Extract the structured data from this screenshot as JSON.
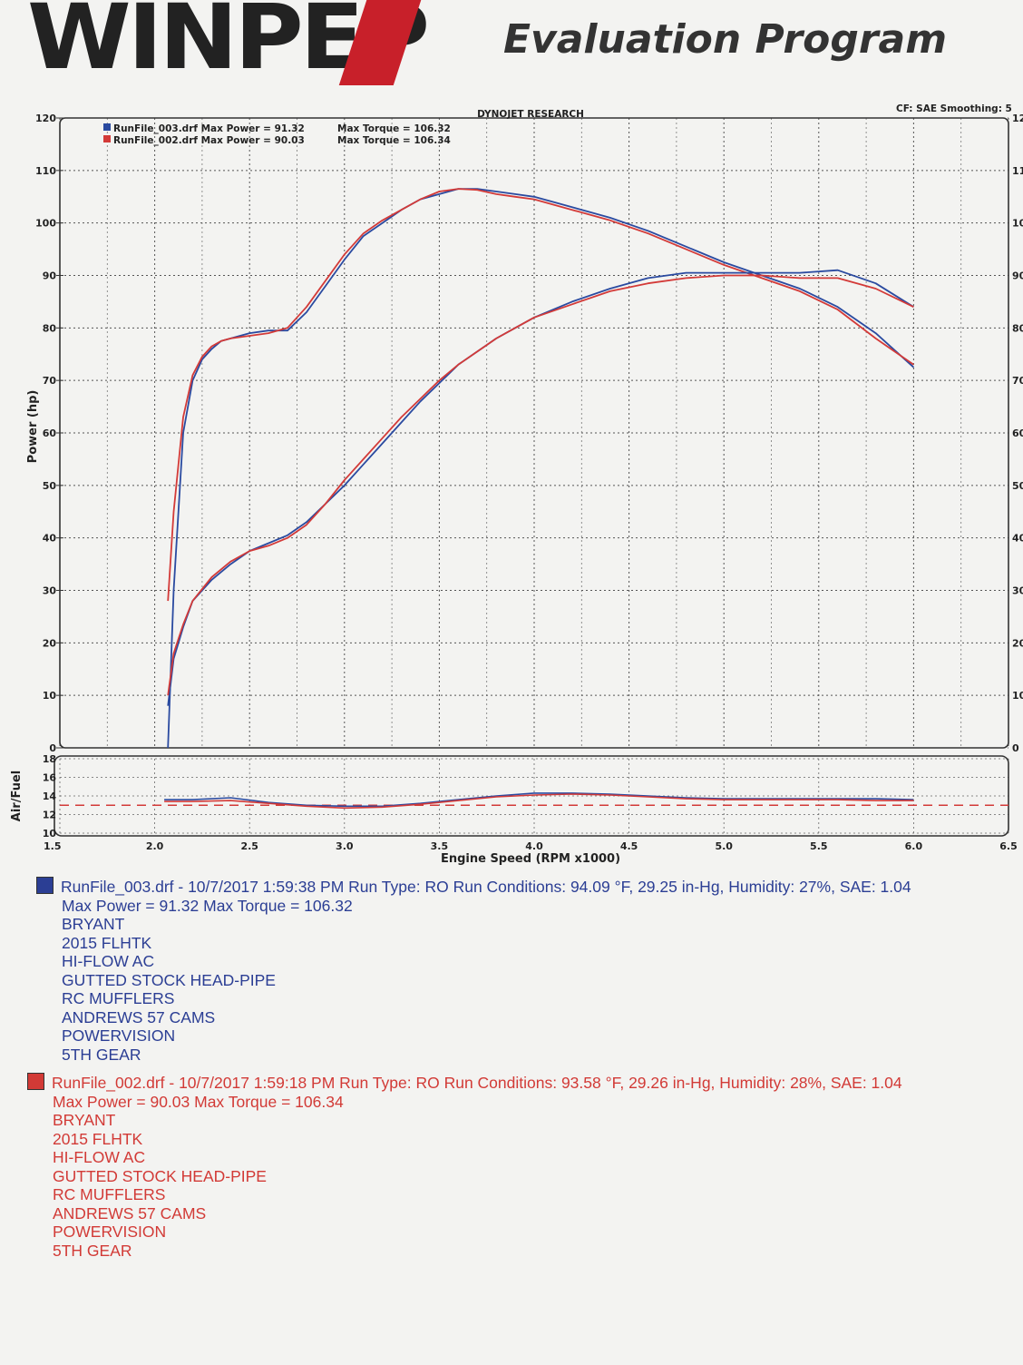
{
  "header": {
    "logo_text": "WINPEP",
    "program_name": "Evaluation Program"
  },
  "chart_data": [
    {
      "type": "line",
      "title": "DYNOJET RESEARCH",
      "note_right": "CF: SAE  Smoothing: 5",
      "xlabel": "Engine Speed (RPM x1000)",
      "ylabel": "Power (hp)",
      "xlim": [
        1.5,
        6.5
      ],
      "ylim": [
        0,
        120
      ],
      "x_ticks": [
        "1.5",
        "2.0",
        "2.5",
        "3.0",
        "3.5",
        "4.0",
        "4.5",
        "5.0",
        "5.5",
        "6.0",
        "6.5"
      ],
      "y_ticks": [
        "0",
        "10",
        "20",
        "30",
        "40",
        "50",
        "60",
        "70",
        "80",
        "90",
        "100",
        "110",
        "120"
      ],
      "grid": true,
      "legend": [
        {
          "label": "RunFile_003.drf Max Power = 91.32",
          "torque": "Max Torque = 106.32",
          "color": "#2a4aa0"
        },
        {
          "label": "RunFile_002.drf Max Power = 90.03",
          "torque": "Max Torque = 106.34",
          "color": "#d33a38"
        }
      ],
      "legend_position": "top-left",
      "series": [
        {
          "run": "RunFile_003.drf",
          "measure": "torque",
          "color": "#2a4aa0",
          "x": [
            2.07,
            2.1,
            2.15,
            2.2,
            2.25,
            2.3,
            2.35,
            2.4,
            2.5,
            2.6,
            2.7,
            2.8,
            2.9,
            3.0,
            3.1,
            3.2,
            3.3,
            3.4,
            3.5,
            3.6,
            3.7,
            3.8,
            3.9,
            4.0,
            4.2,
            4.4,
            4.6,
            4.8,
            5.0,
            5.2,
            5.4,
            5.6,
            5.8,
            6.0
          ],
          "y": [
            0,
            30,
            60,
            70,
            74,
            76,
            77.5,
            78,
            79,
            79.5,
            79.5,
            83,
            88,
            93,
            97.5,
            100,
            102.5,
            104.5,
            105.5,
            106.5,
            106.5,
            106,
            105.5,
            105,
            103,
            101,
            98.5,
            95.5,
            92.5,
            90,
            87.5,
            84,
            79,
            72.5
          ]
        },
        {
          "run": "RunFile_002.drf",
          "measure": "torque",
          "color": "#d33a38",
          "x": [
            2.07,
            2.1,
            2.15,
            2.2,
            2.25,
            2.3,
            2.35,
            2.4,
            2.5,
            2.6,
            2.7,
            2.8,
            2.9,
            3.0,
            3.1,
            3.2,
            3.3,
            3.4,
            3.5,
            3.6,
            3.7,
            3.8,
            3.9,
            4.0,
            4.2,
            4.4,
            4.6,
            4.8,
            5.0,
            5.2,
            5.4,
            5.6,
            5.8,
            6.0
          ],
          "y": [
            28,
            45,
            63,
            71,
            74.5,
            76.5,
            77.5,
            78,
            78.5,
            79,
            80,
            84,
            89,
            94,
            98,
            100.5,
            102.5,
            104.5,
            106,
            106.5,
            106.3,
            105.5,
            105,
            104.5,
            102.5,
            100.5,
            98,
            95,
            92,
            89.5,
            87,
            83.5,
            78,
            73
          ]
        },
        {
          "run": "RunFile_003.drf",
          "measure": "power",
          "color": "#2a4aa0",
          "x": [
            2.07,
            2.1,
            2.15,
            2.2,
            2.3,
            2.4,
            2.5,
            2.6,
            2.7,
            2.8,
            2.9,
            3.0,
            3.1,
            3.2,
            3.3,
            3.4,
            3.5,
            3.6,
            3.7,
            3.8,
            3.9,
            4.0,
            4.2,
            4.4,
            4.6,
            4.8,
            5.0,
            5.2,
            5.4,
            5.6,
            5.8,
            6.0
          ],
          "y": [
            8,
            17,
            23,
            28,
            32,
            35,
            37.5,
            39,
            40.5,
            43,
            46.5,
            50,
            54,
            58,
            62,
            66,
            69.5,
            73,
            75.5,
            78,
            80,
            82,
            85,
            87.5,
            89.5,
            90.5,
            90.5,
            90.5,
            90.5,
            91,
            88.5,
            84
          ]
        },
        {
          "run": "RunFile_002.drf",
          "measure": "power",
          "color": "#d33a38",
          "x": [
            2.07,
            2.1,
            2.15,
            2.2,
            2.3,
            2.4,
            2.5,
            2.6,
            2.7,
            2.8,
            2.9,
            3.0,
            3.1,
            3.2,
            3.3,
            3.4,
            3.5,
            3.6,
            3.7,
            3.8,
            3.9,
            4.0,
            4.2,
            4.4,
            4.6,
            4.8,
            5.0,
            5.2,
            5.4,
            5.6,
            5.8,
            6.0
          ],
          "y": [
            10,
            18,
            23.5,
            28,
            32.5,
            35.5,
            37.5,
            38.5,
            40,
            42.5,
            46.5,
            51,
            55,
            59,
            63,
            66.5,
            70,
            73,
            75.5,
            78,
            80,
            82,
            84.5,
            87,
            88.5,
            89.5,
            90,
            90,
            89.5,
            89.5,
            87.5,
            84
          ]
        }
      ]
    },
    {
      "type": "line",
      "ylabel": "Air/Fuel",
      "xlim": [
        1.5,
        6.5
      ],
      "ylim": [
        10,
        18
      ],
      "y_ticks": [
        "10",
        "12",
        "14",
        "16",
        "18"
      ],
      "reference_line": 13,
      "grid": true,
      "series": [
        {
          "run": "RunFile_003.drf",
          "color": "#2a4aa0",
          "x": [
            2.05,
            2.2,
            2.4,
            2.6,
            2.8,
            3.0,
            3.2,
            3.4,
            3.6,
            3.8,
            4.0,
            4.2,
            4.4,
            4.6,
            4.8,
            5.0,
            5.2,
            5.4,
            5.6,
            5.8,
            6.0
          ],
          "y": [
            13.6,
            13.6,
            13.8,
            13.3,
            13.0,
            12.9,
            12.9,
            13.2,
            13.6,
            14.0,
            14.3,
            14.3,
            14.2,
            14.0,
            13.8,
            13.7,
            13.7,
            13.7,
            13.7,
            13.7,
            13.6
          ]
        },
        {
          "run": "RunFile_002.drf",
          "color": "#d33a38",
          "x": [
            2.05,
            2.2,
            2.4,
            2.6,
            2.8,
            3.0,
            3.2,
            3.4,
            3.6,
            3.8,
            4.0,
            4.2,
            4.4,
            4.6,
            4.8,
            5.0,
            5.2,
            5.4,
            5.6,
            5.8,
            6.0
          ],
          "y": [
            13.4,
            13.4,
            13.5,
            13.2,
            12.9,
            12.7,
            12.8,
            13.1,
            13.5,
            13.9,
            14.1,
            14.2,
            14.1,
            13.9,
            13.7,
            13.6,
            13.6,
            13.6,
            13.6,
            13.5,
            13.5
          ]
        }
      ]
    }
  ],
  "runs": [
    {
      "swatch_color": "#2b3e94",
      "line1": "RunFile_003.drf - 10/7/2017 1:59:38 PM  Run Type: RO  Run Conditions: 94.09 °F, 29.25 in-Hg,  Humidity:  27%, SAE: 1.04",
      "line2": "Max Power = 91.32  Max Torque = 106.32",
      "notes": [
        "BRYANT",
        "2015 FLHTK",
        "HI-FLOW AC",
        "GUTTED STOCK HEAD-PIPE",
        "RC MUFFLERS",
        "ANDREWS 57 CAMS",
        "POWERVISION",
        "5TH GEAR"
      ]
    },
    {
      "swatch_color": "#d23a36",
      "line1": "RunFile_002.drf - 10/7/2017 1:59:18 PM  Run Type: RO  Run Conditions: 93.58 °F, 29.26 in-Hg,  Humidity:  28%, SAE: 1.04",
      "line2": "Max Power = 90.03  Max Torque = 106.34",
      "notes": [
        "BRYANT",
        "2015 FLHTK",
        "HI-FLOW AC",
        "GUTTED STOCK HEAD-PIPE",
        "RC MUFFLERS",
        "ANDREWS 57 CAMS",
        "POWERVISION",
        "5TH GEAR"
      ]
    }
  ]
}
